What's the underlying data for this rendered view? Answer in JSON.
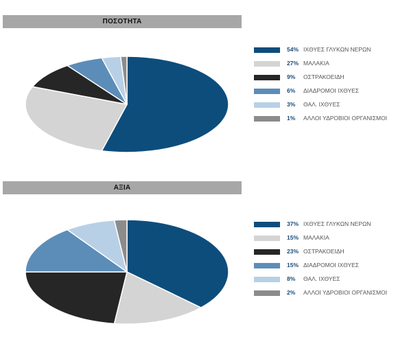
{
  "chart_data": [
    {
      "type": "pie",
      "title": "ΠΟΣΟΤΗΤΑ",
      "slices": [
        {
          "label": "ΙΧΘΥΕΣ ΓΛΥΚΩΝ ΝΕΡΩΝ",
          "value": 54,
          "value_label": "54%",
          "color": "#0d4d7c"
        },
        {
          "label": "ΜΑΛΑΚΙΑ",
          "value": 27,
          "value_label": "27%",
          "color": "#d4d4d4"
        },
        {
          "label": "ΟΣΤΡΑΚΟΕΙΔΗ",
          "value": 9,
          "value_label": "9%",
          "color": "#262626"
        },
        {
          "label": "ΔΙΑΔΡΟΜΟΙ ΙΧΘΥΕΣ",
          "value": 6,
          "value_label": "6%",
          "color": "#5c8db8"
        },
        {
          "label": "ΘΑΛ. ΙΧΘΥΕΣ",
          "value": 3,
          "value_label": "3%",
          "color": "#b8d0e6"
        },
        {
          "label": "ΑΛΛΟΙ ΥΔΡΟΒΙΟΙ ΟΡΓΑΝΙΣΜΟΙ",
          "value": 1,
          "value_label": "1%",
          "color": "#8c8c8c"
        }
      ]
    },
    {
      "type": "pie",
      "title": "ΑΞΙΑ",
      "slices": [
        {
          "label": "ΙΧΘΥΕΣ ΓΛΥΚΩΝ ΝΕΡΩΝ",
          "value": 37,
          "value_label": "37%",
          "color": "#0d4d7c"
        },
        {
          "label": "ΜΑΛΑΚΙΑ",
          "value": 15,
          "value_label": "15%",
          "color": "#d4d4d4"
        },
        {
          "label": "ΟΣΤΡΑΚΟΕΙΔΗ",
          "value": 23,
          "value_label": "23%",
          "color": "#262626"
        },
        {
          "label": "ΔΙΑΔΡΟΜΟΙ ΙΧΘΥΕΣ",
          "value": 15,
          "value_label": "15%",
          "color": "#5c8db8"
        },
        {
          "label": "ΘΑΛ. ΙΧΘΥΕΣ",
          "value": 8,
          "value_label": "8%",
          "color": "#b8d0e6"
        },
        {
          "label": "ΑΛΛΟΙ ΥΔΡΟΒΙΟΙ ΟΡΓΑΝΙΣΜΟΙ",
          "value": 2,
          "value_label": "2%",
          "color": "#8c8c8c"
        }
      ]
    }
  ]
}
